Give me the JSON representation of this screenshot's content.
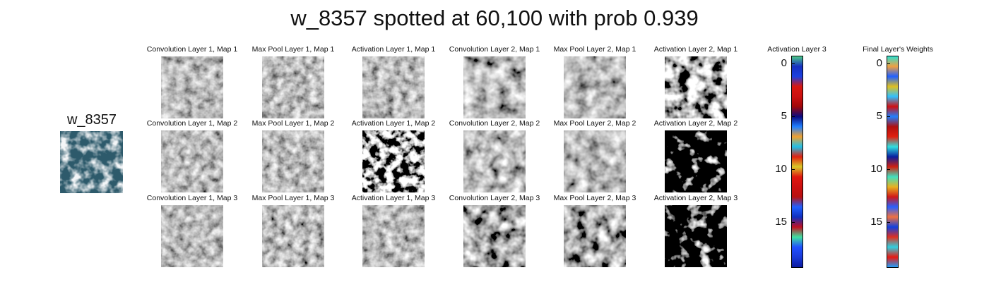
{
  "title": "w_8357 spotted at 60,100 with prob 0.939",
  "input": {
    "label": "w_8357"
  },
  "grid": [
    [
      "Convolution Layer 1, Map 1",
      "Max Pool Layer 1, Map 1",
      "Activation Layer 1, Map 1",
      "Convolution Layer 2, Map 1",
      "Max Pool Layer 2, Map 1",
      "Activation Layer 2, Map 1"
    ],
    [
      "Convolution Layer 1, Map 2",
      "Max Pool Layer 1, Map 2",
      "Activation Layer 1, Map 2",
      "Convolution Layer 2, Map 2",
      "Max Pool Layer 2, Map 2",
      "Activation Layer 2, Map 2"
    ],
    [
      "Convolution Layer 1, Map 3",
      "Max Pool Layer 1, Map 3",
      "Activation Layer 1, Map 3",
      "Convolution Layer 2, Map 3",
      "Max Pool Layer 2, Map 3",
      "Activation Layer 2, Map 3"
    ]
  ],
  "activation_layer3": {
    "title": "Activation Layer 3",
    "ticks": [
      "0",
      "5",
      "10",
      "15"
    ],
    "colors": [
      "#4cc98a",
      "#1730c0",
      "#1a40e0",
      "#d81810",
      "#cc1010",
      "#a00808",
      "#0a0a80",
      "#2080ff",
      "#f0a030",
      "#20c0e8",
      "#e02010",
      "#d8c828",
      "#e01810",
      "#cc1010",
      "#b81010",
      "#2060ff",
      "#1030c0",
      "#c01020",
      "#40e0a0",
      "#2050ff",
      "#1a3ad8",
      "#0c1aa0"
    ]
  },
  "final_weights": {
    "title": "Final Layer's Weights",
    "ticks": [
      "0",
      "5",
      "10",
      "15"
    ],
    "colors": [
      "#30e0d0",
      "#f0a040",
      "#2060ff",
      "#e0c020",
      "#30c0ff",
      "#d01010",
      "#2080ff",
      "#b01010",
      "#e02010",
      "#30e0e0",
      "#0820a0",
      "#d02010",
      "#40e0c0",
      "#e8b020",
      "#d01818",
      "#2860ff",
      "#f07040",
      "#1040e0",
      "#e03020",
      "#30d0e0",
      "#e81810",
      "#20a0ff"
    ]
  }
}
